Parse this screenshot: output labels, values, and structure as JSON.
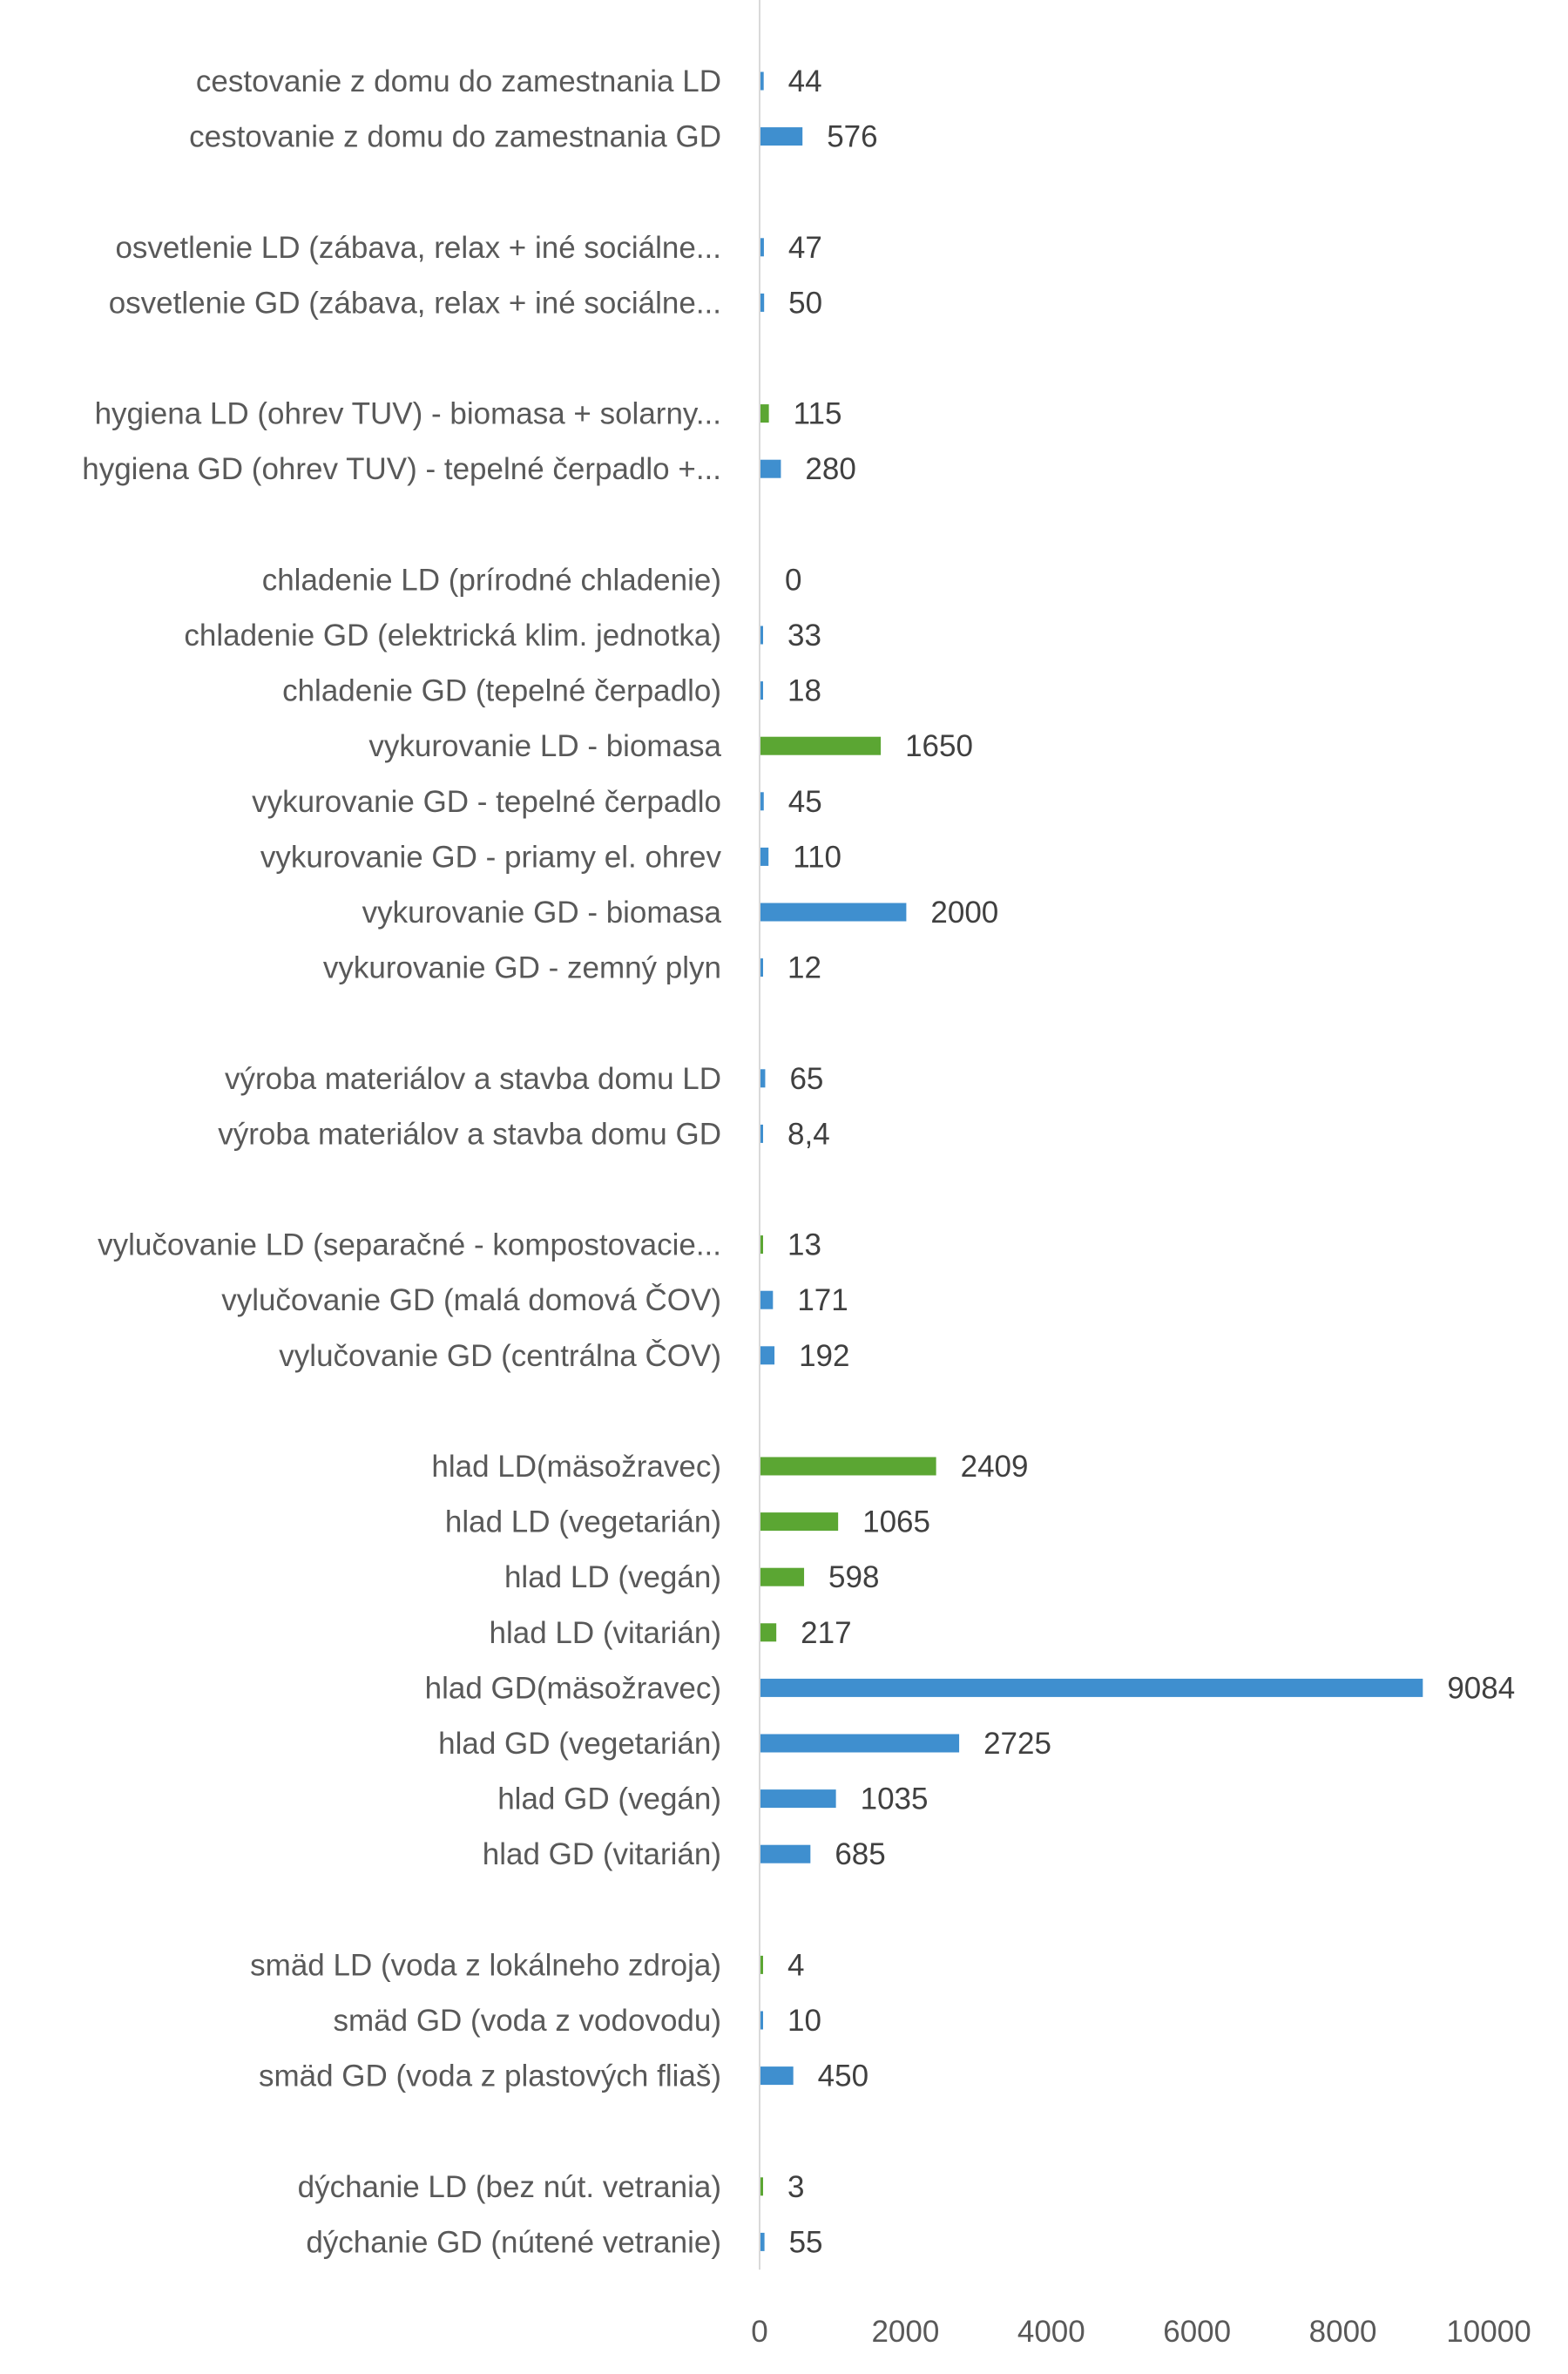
{
  "chart_data": {
    "type": "bar",
    "orientation": "horizontal",
    "xlim": [
      0,
      10000
    ],
    "xticks": [
      "0",
      "2000",
      "4000",
      "6000",
      "8000",
      "10000"
    ],
    "grid": false,
    "colors": {
      "blue": "#3F8FCF",
      "green": "#5BA633",
      "axis": "#D9D9D9",
      "text": "#595959"
    },
    "items": [
      {
        "label": "cestovanie z domu do zamestnania LD",
        "value": 44,
        "value_label": "44",
        "color": "blue"
      },
      {
        "label": "cestovanie z domu do zamestnania GD",
        "value": 576,
        "value_label": "576",
        "color": "blue"
      },
      null,
      {
        "label": "osvetlenie LD (zábava, relax + iné sociálne...",
        "value": 47,
        "value_label": "47",
        "color": "blue"
      },
      {
        "label": "osvetlenie GD (zábava, relax + iné sociálne...",
        "value": 50,
        "value_label": "50",
        "color": "blue"
      },
      null,
      {
        "label": "hygiena LD (ohrev TUV) - biomasa + solarny...",
        "value": 115,
        "value_label": "115",
        "color": "green"
      },
      {
        "label": "hygiena GD (ohrev TUV) - tepelné čerpadlo +...",
        "value": 280,
        "value_label": "280",
        "color": "blue"
      },
      null,
      {
        "label": "chladenie LD (prírodné chladenie)",
        "value": 0,
        "value_label": "0",
        "color": "green"
      },
      {
        "label": "chladenie GD (elektrická klim. jednotka)",
        "value": 33,
        "value_label": "33",
        "color": "blue"
      },
      {
        "label": "chladenie GD (tepelné čerpadlo)",
        "value": 18,
        "value_label": "18",
        "color": "blue"
      },
      {
        "label": "vykurovanie LD - biomasa",
        "value": 1650,
        "value_label": "1650",
        "color": "green"
      },
      {
        "label": "vykurovanie GD - tepelné čerpadlo",
        "value": 45,
        "value_label": "45",
        "color": "blue"
      },
      {
        "label": "vykurovanie GD - priamy el. ohrev",
        "value": 110,
        "value_label": "110",
        "color": "blue"
      },
      {
        "label": "vykurovanie GD - biomasa",
        "value": 2000,
        "value_label": "2000",
        "color": "blue"
      },
      {
        "label": "vykurovanie GD - zemný plyn",
        "value": 12,
        "value_label": "12",
        "color": "blue"
      },
      null,
      {
        "label": "výroba materiálov a stavba domu LD",
        "value": 65,
        "value_label": "65",
        "color": "blue"
      },
      {
        "label": "výroba materiálov a stavba domu GD",
        "value": 8.4,
        "value_label": "8,4",
        "color": "blue"
      },
      null,
      {
        "label": "vylučovanie LD (separačné - kompostovacie...",
        "value": 13,
        "value_label": "13",
        "color": "green"
      },
      {
        "label": "vylučovanie GD (malá domová ČOV)",
        "value": 171,
        "value_label": "171",
        "color": "blue"
      },
      {
        "label": "vylučovanie GD (centrálna ČOV)",
        "value": 192,
        "value_label": "192",
        "color": "blue"
      },
      null,
      {
        "label": "hlad LD(mäsožravec)",
        "value": 2409,
        "value_label": "2409",
        "color": "green"
      },
      {
        "label": "hlad LD (vegetarián)",
        "value": 1065,
        "value_label": "1065",
        "color": "green"
      },
      {
        "label": "hlad LD (vegán)",
        "value": 598,
        "value_label": "598",
        "color": "green"
      },
      {
        "label": "hlad LD (vitarián)",
        "value": 217,
        "value_label": "217",
        "color": "green"
      },
      {
        "label": "hlad GD(mäsožravec)",
        "value": 9084,
        "value_label": "9084",
        "color": "blue"
      },
      {
        "label": "hlad GD (vegetarián)",
        "value": 2725,
        "value_label": "2725",
        "color": "blue"
      },
      {
        "label": "hlad GD (vegán)",
        "value": 1035,
        "value_label": "1035",
        "color": "blue"
      },
      {
        "label": "hlad GD (vitarián)",
        "value": 685,
        "value_label": "685",
        "color": "blue"
      },
      null,
      {
        "label": "smäd LD (voda z lokálneho zdroja)",
        "value": 4,
        "value_label": "4",
        "color": "green"
      },
      {
        "label": "smäd GD (voda z vodovodu)",
        "value": 10,
        "value_label": "10",
        "color": "blue"
      },
      {
        "label": "smäd GD (voda z plastových fliaš)",
        "value": 450,
        "value_label": "450",
        "color": "blue"
      },
      null,
      {
        "label": "dýchanie LD (bez nút. vetrania)",
        "value": 3,
        "value_label": "3",
        "color": "green"
      },
      {
        "label": "dýchanie GD (nútené vetranie)",
        "value": 55,
        "value_label": "55",
        "color": "blue"
      }
    ]
  }
}
